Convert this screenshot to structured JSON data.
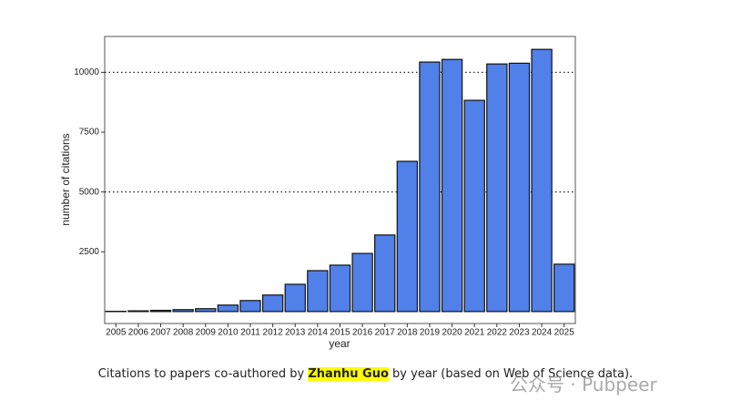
{
  "chart_data": {
    "type": "bar",
    "xlabel": "year",
    "ylabel": "number of citations",
    "categories": [
      "2005",
      "2006",
      "2007",
      "2008",
      "2009",
      "2010",
      "2011",
      "2012",
      "2013",
      "2014",
      "2015",
      "2016",
      "2017",
      "2018",
      "2019",
      "2020",
      "2021",
      "2022",
      "2023",
      "2024",
      "2025"
    ],
    "values": [
      10,
      30,
      50,
      80,
      120,
      270,
      460,
      690,
      1140,
      1710,
      1940,
      2430,
      3200,
      6280,
      10430,
      10540,
      8830,
      10350,
      10380,
      10960,
      1980
    ],
    "color": "#5080e8",
    "ylim": [
      -500,
      11500
    ],
    "yticks": [
      2500,
      5000,
      7500,
      10000
    ],
    "ygrid": [
      5000,
      10000
    ]
  },
  "caption": {
    "before": "Citations to papers co-authored by ",
    "highlight": "Zhanhu Guo",
    "after": " by year (based on Web of Science data)."
  },
  "watermark": "公众号 · Pubpeer"
}
